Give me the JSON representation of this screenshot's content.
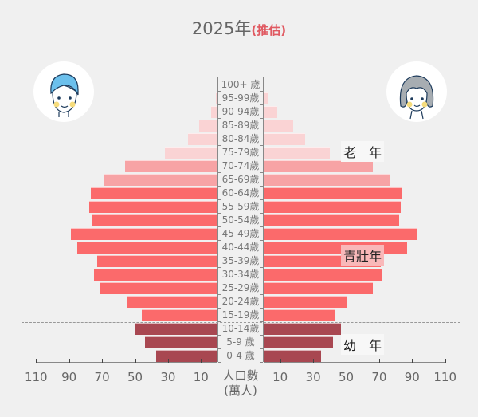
{
  "title": {
    "year": "2025年",
    "estimate": "(推估)"
  },
  "avatars": {
    "left": "male-avatar",
    "right": "female-avatar"
  },
  "group_labels": {
    "elderly": "老　年",
    "working": "青壯年",
    "young": "幼　年"
  },
  "axis": {
    "title_line1": "人口數",
    "title_line2": "(萬人)",
    "left_ticks": [
      "110",
      "90",
      "70",
      "50",
      "30",
      "10"
    ],
    "right_ticks": [
      "10",
      "30",
      "50",
      "70",
      "90",
      "110"
    ]
  },
  "colors": {
    "background": "#f0f0f0",
    "old_75plus": "#fad3d4",
    "old_65_74": "#f7a3a5",
    "working": "#fb6a6b",
    "young": "#a84751",
    "title_estimate": "#e05a62"
  },
  "chart_data": {
    "type": "bar",
    "subtype": "population-pyramid",
    "title": "2025年(推估)",
    "xlabel": "人口數 (萬人)",
    "ylabel": "",
    "xlim": [
      0,
      110
    ],
    "x_ticks": [
      10,
      30,
      50,
      70,
      90,
      110
    ],
    "categories": [
      "100+ 歲",
      "95-99歲",
      "90-94歲",
      "85-89歲",
      "80-84歲",
      "75-79歲",
      "70-74歲",
      "65-69歲",
      "60-64歲",
      "55-59歲",
      "50-54歲",
      "45-49歲",
      "40-44歲",
      "35-39歲",
      "30-34歲",
      "25-29歲",
      "20-24歲",
      "15-19歲",
      "10-14歲",
      "5-9  歲",
      "0-4  歲"
    ],
    "series": [
      {
        "name": "男 (左)",
        "side": "left",
        "values": [
          0,
          1,
          4,
          11,
          18,
          32,
          56,
          69,
          77,
          78,
          76,
          89,
          85,
          73,
          75,
          71,
          55,
          46,
          50,
          44,
          37
        ]
      },
      {
        "name": "女 (右)",
        "side": "right",
        "values": [
          0,
          3,
          8,
          18,
          25,
          40,
          66,
          77,
          84,
          83,
          82,
          93,
          87,
          71,
          72,
          66,
          50,
          43,
          47,
          42,
          35
        ]
      }
    ],
    "groups": [
      {
        "label": "老年",
        "ages": "65+"
      },
      {
        "label": "青壯年",
        "ages": "15-64"
      },
      {
        "label": "幼年",
        "ages": "0-14"
      }
    ],
    "grid": false,
    "legend": "none"
  }
}
